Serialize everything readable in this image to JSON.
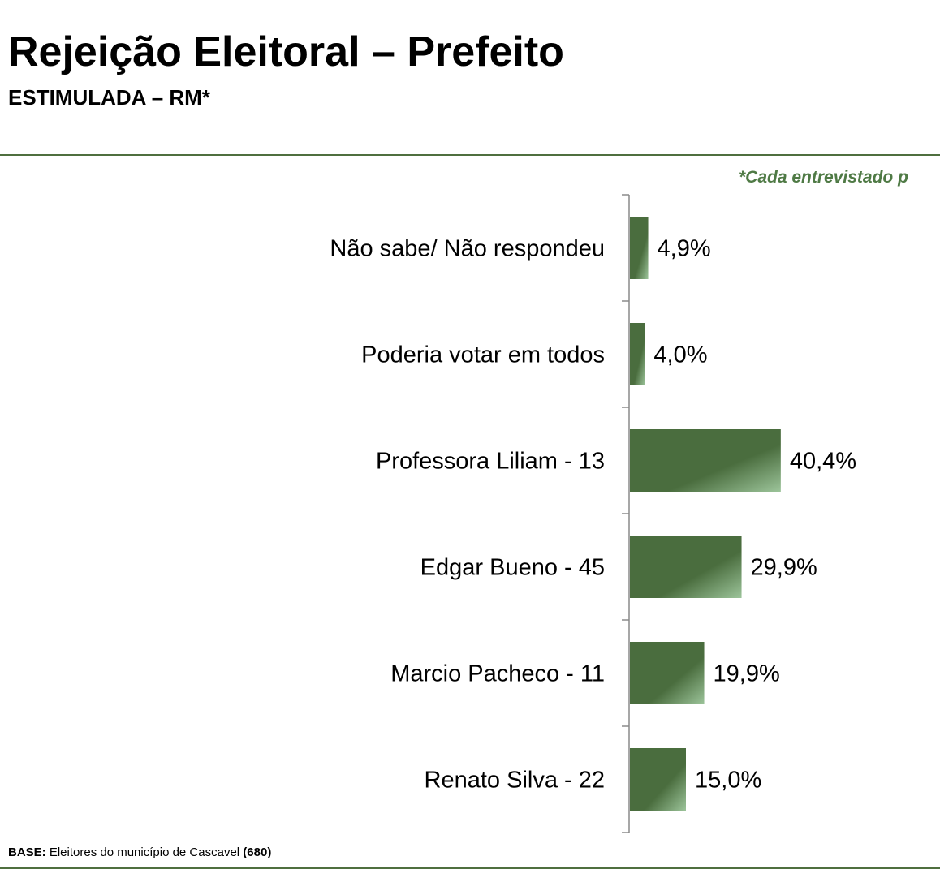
{
  "header": {
    "title": "Rejeição Eleitoral – Prefeito",
    "subtitle": "ESTIMULADA – RM*"
  },
  "note": "*Cada entrevistado p",
  "footer": {
    "base_label": "BASE:",
    "base_text": " Eleitores do município de Cascavel ",
    "base_count": "(680)"
  },
  "colors": {
    "bar": "#4a6d3e",
    "bar_highlight": "#9cc49a",
    "rule": "#4f6f3f",
    "note": "#4f7a45"
  },
  "chart_data": {
    "type": "bar",
    "orientation": "horizontal",
    "categories": [
      "Não sabe/ Não respondeu",
      "Poderia votar em todos",
      "Professora Liliam - 13",
      "Edgar Bueno - 45",
      "Marcio Pacheco - 11",
      "Renato Silva - 22"
    ],
    "values": [
      4.9,
      4.0,
      40.4,
      29.9,
      19.9,
      15.0
    ],
    "value_labels": [
      "4,9%",
      "4,0%",
      "40,4%",
      "29,9%",
      "19,9%",
      "15,0%"
    ],
    "xlim": [
      0,
      100
    ],
    "grid": false,
    "legend": "none"
  }
}
